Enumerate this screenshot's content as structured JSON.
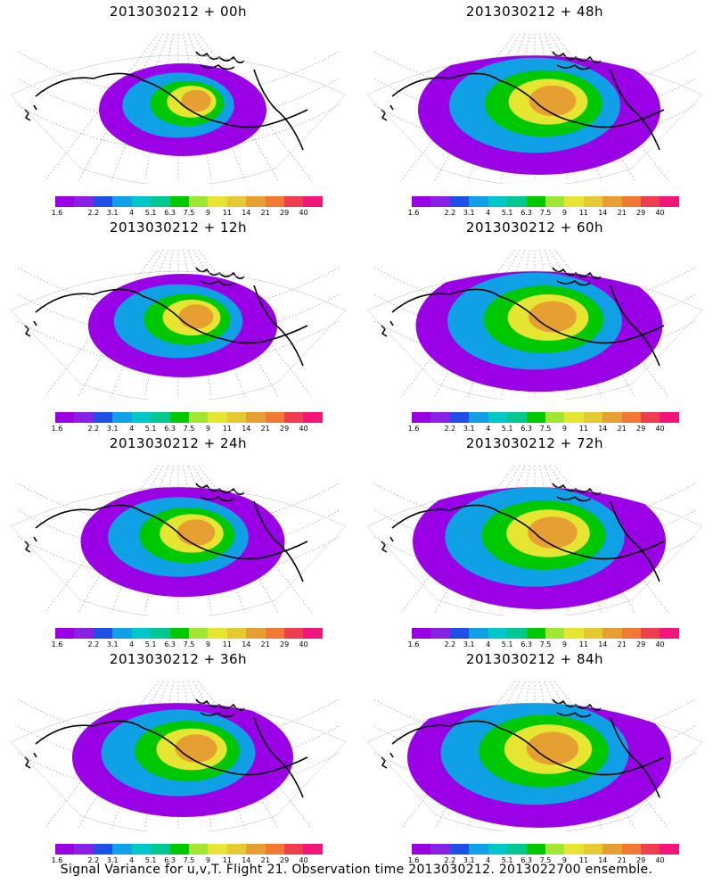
{
  "panels": [
    {
      "id": "p00",
      "title": "2013030212  + 00h",
      "intensity": 0.45
    },
    {
      "id": "p48",
      "title": "2013030212  + 48h",
      "intensity": 0.8
    },
    {
      "id": "p12",
      "title": "2013030212  + 12h",
      "intensity": 0.55
    },
    {
      "id": "p60",
      "title": "2013030212  + 60h",
      "intensity": 0.82
    },
    {
      "id": "p24",
      "title": "2013030212  + 24h",
      "intensity": 0.62
    },
    {
      "id": "p72",
      "title": "2013030212  + 72h",
      "intensity": 0.85
    },
    {
      "id": "p36",
      "title": "2013030212  + 36h",
      "intensity": 0.7
    },
    {
      "id": "p84",
      "title": "2013030212  + 84h",
      "intensity": 0.9
    }
  ],
  "colorbar": {
    "colors": [
      "#9a00e6",
      "#8a1fe6",
      "#1f4fe6",
      "#0fa0e6",
      "#00c8c8",
      "#00c890",
      "#00c800",
      "#a0e632",
      "#e6e632",
      "#e6c832",
      "#e6a032",
      "#f07a32",
      "#f03c50",
      "#f0167a"
    ],
    "labels": [
      "1.6",
      "2.2",
      "3.1",
      "4",
      "5.1",
      "6.3",
      "7.5",
      "9",
      "11",
      "14",
      "21",
      "29",
      "40"
    ]
  },
  "caption": "Signal Variance for u,v,T. Flight 21. Observation time 2013030212. 2013022700 ensemble."
}
